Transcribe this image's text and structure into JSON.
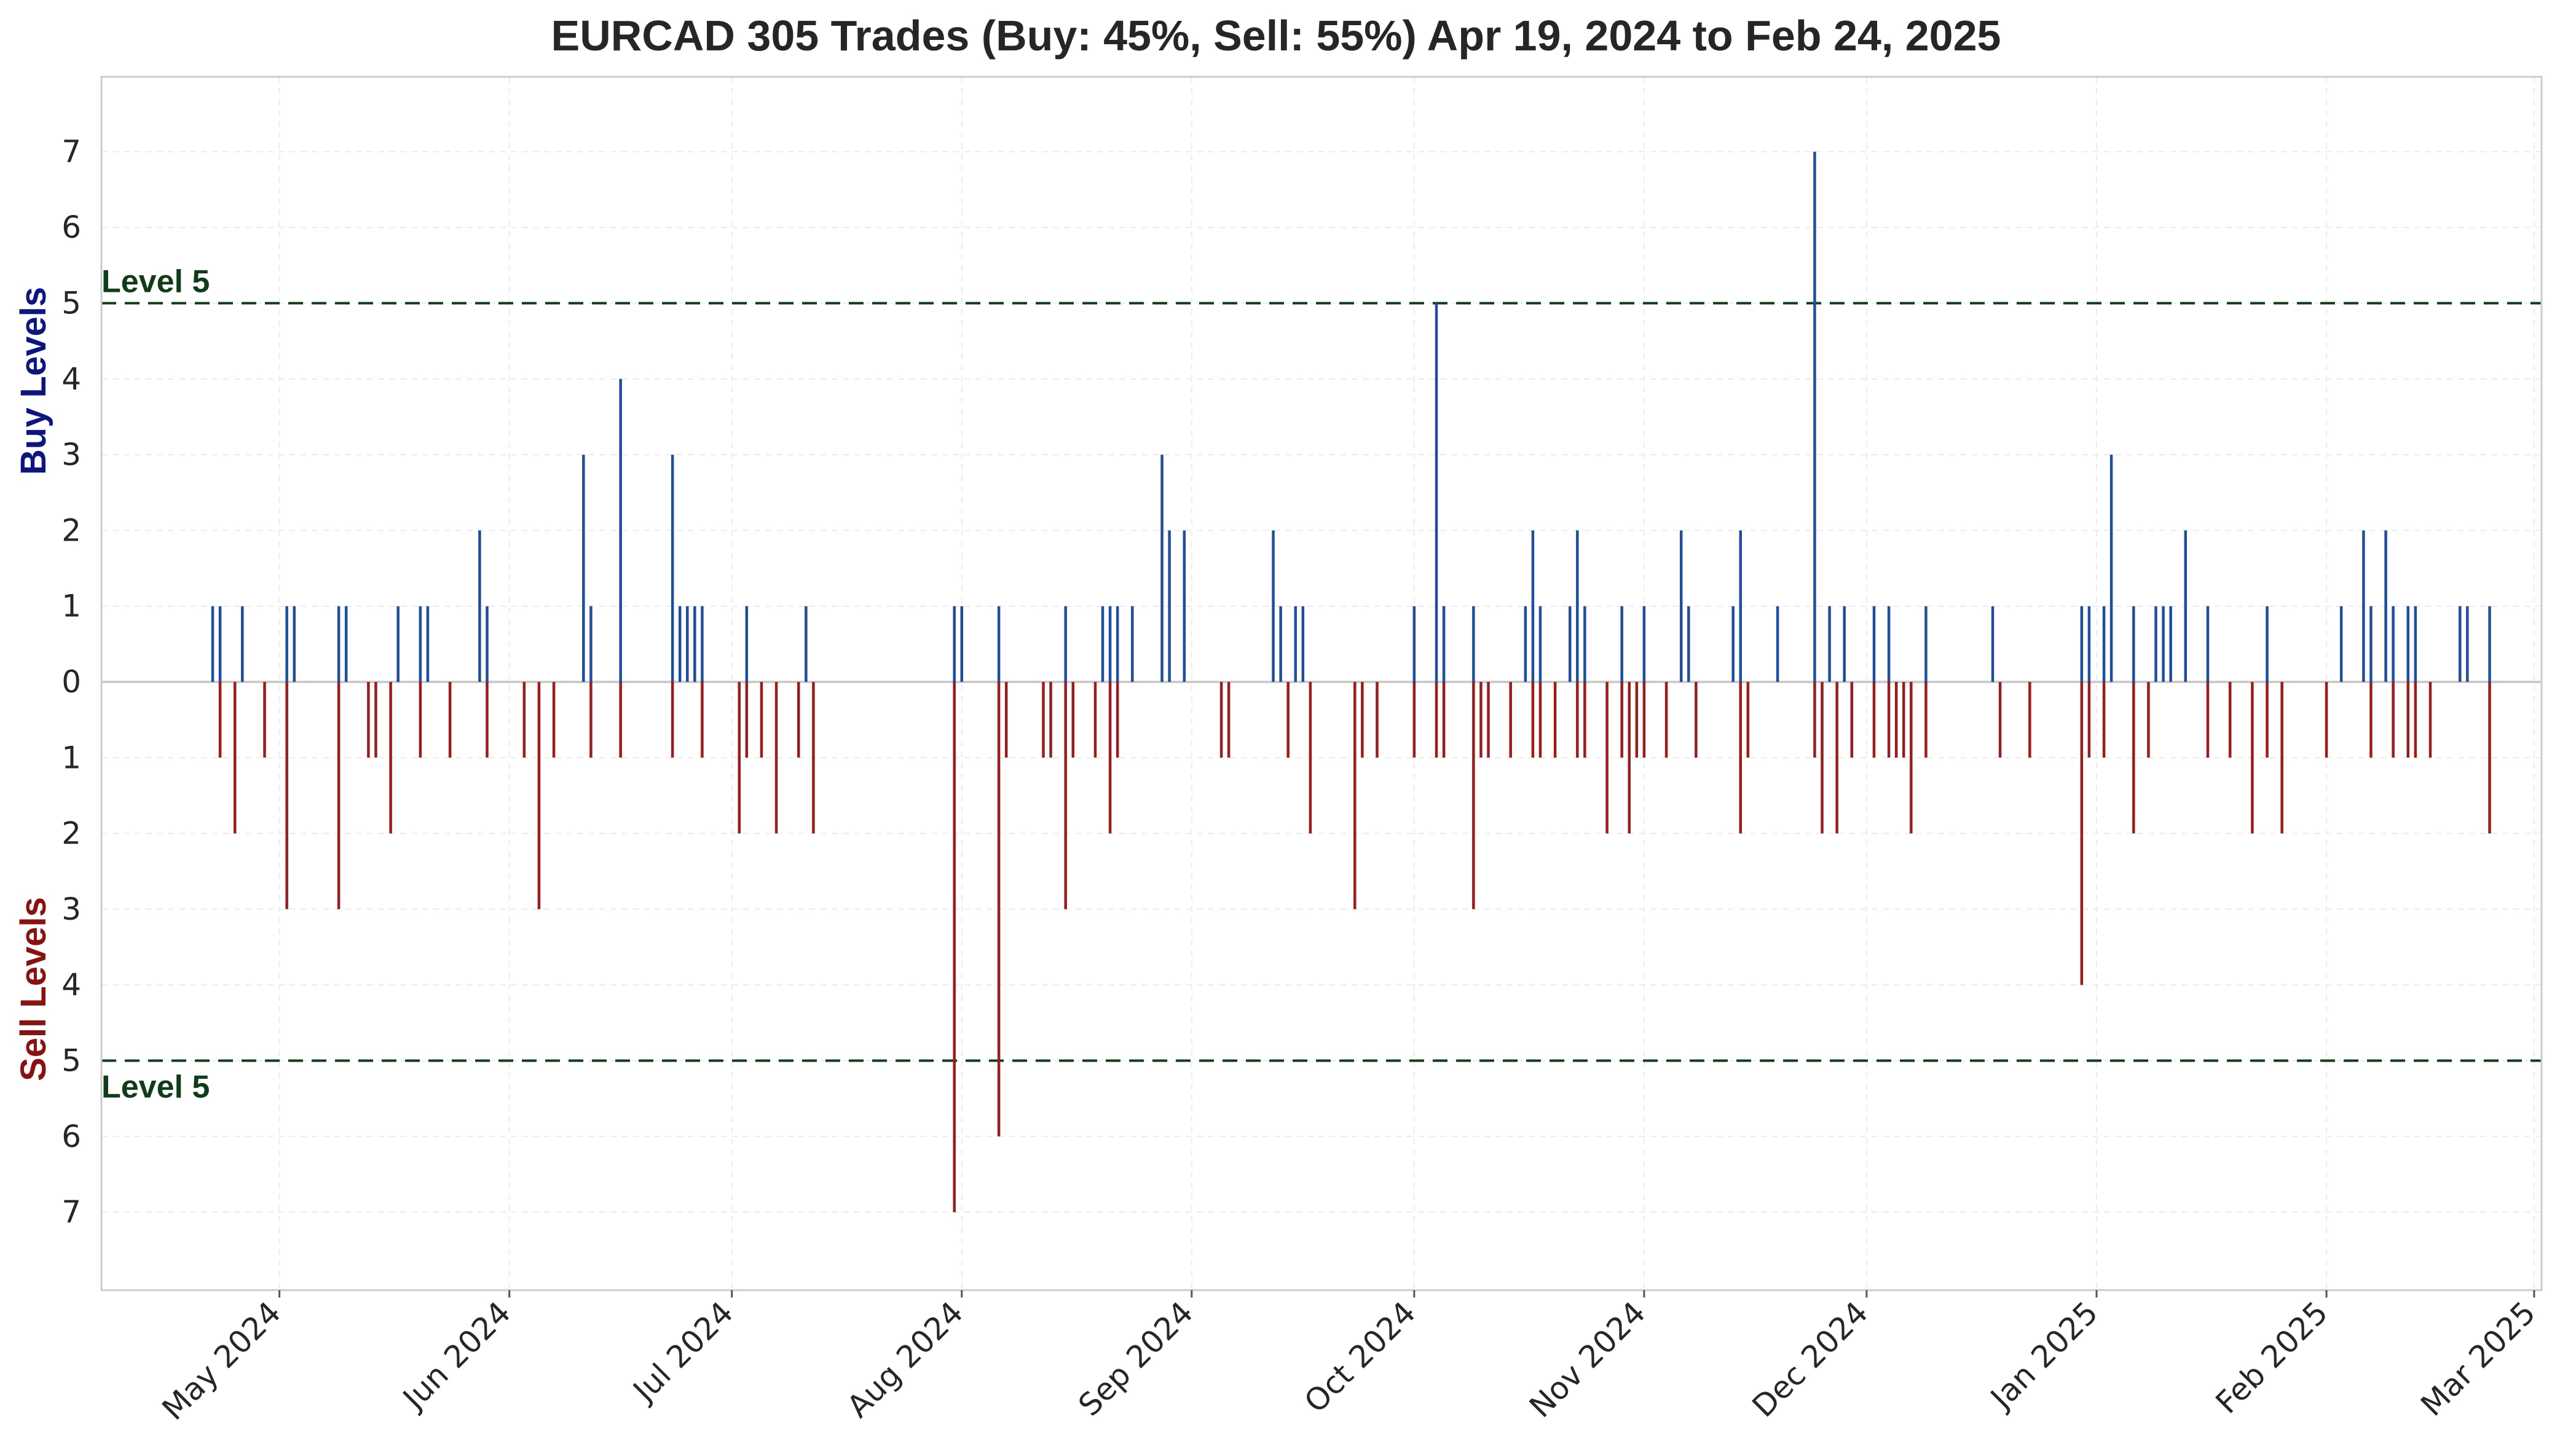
{
  "chart_data": {
    "type": "bar",
    "title": "EURCAD 305 Trades (Buy: 45%, Sell: 55%) Apr 19, 2024 to Feb 24, 2025",
    "buy_axis_label": "Buy Levels",
    "sell_axis_label": "Sell Levels",
    "y_tick_labels": [
      "7",
      "6",
      "5",
      "4",
      "3",
      "2",
      "1",
      "0",
      "1",
      "2",
      "3",
      "4",
      "5",
      "6",
      "7"
    ],
    "ylim": [
      -8,
      8
    ],
    "xlim": [
      "2024-04-07",
      "2025-03-02"
    ],
    "x_tick_labels": [
      {
        "date": "2024-05-01",
        "label": "May 2024"
      },
      {
        "date": "2024-06-01",
        "label": "Jun 2024"
      },
      {
        "date": "2024-07-01",
        "label": "Jul 2024"
      },
      {
        "date": "2024-08-01",
        "label": "Aug 2024"
      },
      {
        "date": "2024-09-01",
        "label": "Sep 2024"
      },
      {
        "date": "2024-10-01",
        "label": "Oct 2024"
      },
      {
        "date": "2024-11-01",
        "label": "Nov 2024"
      },
      {
        "date": "2024-12-01",
        "label": "Dec 2024"
      },
      {
        "date": "2025-01-01",
        "label": "Jan 2025"
      },
      {
        "date": "2025-02-01",
        "label": "Feb 2025"
      },
      {
        "date": "2025-03-01",
        "label": "Mar 2025"
      }
    ],
    "reference_lines": [
      {
        "value": 5,
        "label": "Level 5"
      },
      {
        "value": -5,
        "label": "Level 5"
      }
    ],
    "grid": true,
    "colors": {
      "buy": "#1f4e9e",
      "sell": "#9b1c1c",
      "level_line": "#0f3d1a",
      "level_text": "#0f3d1a",
      "buy_label": "#0d1680",
      "sell_label": "#8b1010"
    },
    "series": [
      {
        "name": "Buy",
        "points": [
          {
            "date": "2024-04-22",
            "value": 1
          },
          {
            "date": "2024-04-23",
            "value": 1
          },
          {
            "date": "2024-04-26",
            "value": 1
          },
          {
            "date": "2024-05-02",
            "value": 1
          },
          {
            "date": "2024-05-03",
            "value": 1
          },
          {
            "date": "2024-05-09",
            "value": 1
          },
          {
            "date": "2024-05-10",
            "value": 1
          },
          {
            "date": "2024-05-17",
            "value": 1
          },
          {
            "date": "2024-05-20",
            "value": 1
          },
          {
            "date": "2024-05-21",
            "value": 1
          },
          {
            "date": "2024-05-28",
            "value": 2
          },
          {
            "date": "2024-05-29",
            "value": 1
          },
          {
            "date": "2024-06-11",
            "value": 3
          },
          {
            "date": "2024-06-12",
            "value": 1
          },
          {
            "date": "2024-06-16",
            "value": 4
          },
          {
            "date": "2024-06-23",
            "value": 3
          },
          {
            "date": "2024-06-24",
            "value": 1
          },
          {
            "date": "2024-06-25",
            "value": 1
          },
          {
            "date": "2024-06-26",
            "value": 1
          },
          {
            "date": "2024-06-27",
            "value": 1
          },
          {
            "date": "2024-07-03",
            "value": 1
          },
          {
            "date": "2024-07-11",
            "value": 1
          },
          {
            "date": "2024-07-31",
            "value": 1
          },
          {
            "date": "2024-08-01",
            "value": 1
          },
          {
            "date": "2024-08-06",
            "value": 1
          },
          {
            "date": "2024-08-15",
            "value": 1
          },
          {
            "date": "2024-08-20",
            "value": 1
          },
          {
            "date": "2024-08-21",
            "value": 1
          },
          {
            "date": "2024-08-22",
            "value": 1
          },
          {
            "date": "2024-08-24",
            "value": 1
          },
          {
            "date": "2024-08-28",
            "value": 3
          },
          {
            "date": "2024-08-29",
            "value": 2
          },
          {
            "date": "2024-08-31",
            "value": 2
          },
          {
            "date": "2024-09-12",
            "value": 2
          },
          {
            "date": "2024-09-13",
            "value": 1
          },
          {
            "date": "2024-09-15",
            "value": 1
          },
          {
            "date": "2024-09-16",
            "value": 1
          },
          {
            "date": "2024-10-01",
            "value": 1
          },
          {
            "date": "2024-10-04",
            "value": 5
          },
          {
            "date": "2024-10-05",
            "value": 1
          },
          {
            "date": "2024-10-09",
            "value": 1
          },
          {
            "date": "2024-10-16",
            "value": 1
          },
          {
            "date": "2024-10-17",
            "value": 2
          },
          {
            "date": "2024-10-18",
            "value": 1
          },
          {
            "date": "2024-10-22",
            "value": 1
          },
          {
            "date": "2024-10-23",
            "value": 2
          },
          {
            "date": "2024-10-24",
            "value": 1
          },
          {
            "date": "2024-10-29",
            "value": 1
          },
          {
            "date": "2024-11-01",
            "value": 1
          },
          {
            "date": "2024-11-06",
            "value": 2
          },
          {
            "date": "2024-11-07",
            "value": 1
          },
          {
            "date": "2024-11-13",
            "value": 1
          },
          {
            "date": "2024-11-14",
            "value": 2
          },
          {
            "date": "2024-11-19",
            "value": 1
          },
          {
            "date": "2024-11-24",
            "value": 7
          },
          {
            "date": "2024-11-26",
            "value": 1
          },
          {
            "date": "2024-11-28",
            "value": 1
          },
          {
            "date": "2024-12-02",
            "value": 1
          },
          {
            "date": "2024-12-04",
            "value": 1
          },
          {
            "date": "2024-12-09",
            "value": 1
          },
          {
            "date": "2024-12-18",
            "value": 1
          },
          {
            "date": "2024-12-30",
            "value": 1
          },
          {
            "date": "2024-12-31",
            "value": 1
          },
          {
            "date": "2025-01-02",
            "value": 1
          },
          {
            "date": "2025-01-03",
            "value": 3
          },
          {
            "date": "2025-01-06",
            "value": 1
          },
          {
            "date": "2025-01-09",
            "value": 1
          },
          {
            "date": "2025-01-10",
            "value": 1
          },
          {
            "date": "2025-01-11",
            "value": 1
          },
          {
            "date": "2025-01-13",
            "value": 2
          },
          {
            "date": "2025-01-16",
            "value": 1
          },
          {
            "date": "2025-01-24",
            "value": 1
          },
          {
            "date": "2025-02-03",
            "value": 1
          },
          {
            "date": "2025-02-06",
            "value": 2
          },
          {
            "date": "2025-02-07",
            "value": 1
          },
          {
            "date": "2025-02-09",
            "value": 2
          },
          {
            "date": "2025-02-10",
            "value": 1
          },
          {
            "date": "2025-02-12",
            "value": 1
          },
          {
            "date": "2025-02-13",
            "value": 1
          },
          {
            "date": "2025-02-19",
            "value": 1
          },
          {
            "date": "2025-02-20",
            "value": 1
          },
          {
            "date": "2025-02-23",
            "value": 1
          }
        ]
      },
      {
        "name": "Sell",
        "points": [
          {
            "date": "2024-04-23",
            "value": -1
          },
          {
            "date": "2024-04-25",
            "value": -2
          },
          {
            "date": "2024-04-29",
            "value": -1
          },
          {
            "date": "2024-05-02",
            "value": -3
          },
          {
            "date": "2024-05-09",
            "value": -3
          },
          {
            "date": "2024-05-13",
            "value": -1
          },
          {
            "date": "2024-05-14",
            "value": -1
          },
          {
            "date": "2024-05-16",
            "value": -2
          },
          {
            "date": "2024-05-20",
            "value": -1
          },
          {
            "date": "2024-05-24",
            "value": -1
          },
          {
            "date": "2024-05-29",
            "value": -1
          },
          {
            "date": "2024-06-03",
            "value": -1
          },
          {
            "date": "2024-06-05",
            "value": -3
          },
          {
            "date": "2024-06-07",
            "value": -1
          },
          {
            "date": "2024-06-12",
            "value": -1
          },
          {
            "date": "2024-06-16",
            "value": -1
          },
          {
            "date": "2024-06-23",
            "value": -1
          },
          {
            "date": "2024-06-27",
            "value": -1
          },
          {
            "date": "2024-07-02",
            "value": -2
          },
          {
            "date": "2024-07-03",
            "value": -1
          },
          {
            "date": "2024-07-05",
            "value": -1
          },
          {
            "date": "2024-07-07",
            "value": -2
          },
          {
            "date": "2024-07-10",
            "value": -1
          },
          {
            "date": "2024-07-12",
            "value": -2
          },
          {
            "date": "2024-07-31",
            "value": -7
          },
          {
            "date": "2024-08-06",
            "value": -6
          },
          {
            "date": "2024-08-07",
            "value": -1
          },
          {
            "date": "2024-08-12",
            "value": -1
          },
          {
            "date": "2024-08-13",
            "value": -1
          },
          {
            "date": "2024-08-15",
            "value": -3
          },
          {
            "date": "2024-08-16",
            "value": -1
          },
          {
            "date": "2024-08-19",
            "value": -1
          },
          {
            "date": "2024-08-21",
            "value": -2
          },
          {
            "date": "2024-08-22",
            "value": -1
          },
          {
            "date": "2024-09-05",
            "value": -1
          },
          {
            "date": "2024-09-06",
            "value": -1
          },
          {
            "date": "2024-09-14",
            "value": -1
          },
          {
            "date": "2024-09-17",
            "value": -2
          },
          {
            "date": "2024-09-23",
            "value": -3
          },
          {
            "date": "2024-09-24",
            "value": -1
          },
          {
            "date": "2024-09-26",
            "value": -1
          },
          {
            "date": "2024-10-01",
            "value": -1
          },
          {
            "date": "2024-10-04",
            "value": -1
          },
          {
            "date": "2024-10-05",
            "value": -1
          },
          {
            "date": "2024-10-09",
            "value": -3
          },
          {
            "date": "2024-10-10",
            "value": -1
          },
          {
            "date": "2024-10-11",
            "value": -1
          },
          {
            "date": "2024-10-14",
            "value": -1
          },
          {
            "date": "2024-10-17",
            "value": -1
          },
          {
            "date": "2024-10-18",
            "value": -1
          },
          {
            "date": "2024-10-20",
            "value": -1
          },
          {
            "date": "2024-10-23",
            "value": -1
          },
          {
            "date": "2024-10-24",
            "value": -1
          },
          {
            "date": "2024-10-27",
            "value": -2
          },
          {
            "date": "2024-10-29",
            "value": -1
          },
          {
            "date": "2024-10-30",
            "value": -2
          },
          {
            "date": "2024-10-31",
            "value": -1
          },
          {
            "date": "2024-11-01",
            "value": -1
          },
          {
            "date": "2024-11-04",
            "value": -1
          },
          {
            "date": "2024-11-08",
            "value": -1
          },
          {
            "date": "2024-11-14",
            "value": -2
          },
          {
            "date": "2024-11-15",
            "value": -1
          },
          {
            "date": "2024-11-24",
            "value": -1
          },
          {
            "date": "2024-11-25",
            "value": -2
          },
          {
            "date": "2024-11-27",
            "value": -2
          },
          {
            "date": "2024-11-29",
            "value": -1
          },
          {
            "date": "2024-12-02",
            "value": -1
          },
          {
            "date": "2024-12-04",
            "value": -1
          },
          {
            "date": "2024-12-05",
            "value": -1
          },
          {
            "date": "2024-12-06",
            "value": -1
          },
          {
            "date": "2024-12-07",
            "value": -2
          },
          {
            "date": "2024-12-09",
            "value": -1
          },
          {
            "date": "2024-12-19",
            "value": -1
          },
          {
            "date": "2024-12-23",
            "value": -1
          },
          {
            "date": "2024-12-30",
            "value": -4
          },
          {
            "date": "2024-12-31",
            "value": -1
          },
          {
            "date": "2025-01-02",
            "value": -1
          },
          {
            "date": "2025-01-06",
            "value": -2
          },
          {
            "date": "2025-01-08",
            "value": -1
          },
          {
            "date": "2025-01-16",
            "value": -1
          },
          {
            "date": "2025-01-19",
            "value": -1
          },
          {
            "date": "2025-01-22",
            "value": -2
          },
          {
            "date": "2025-01-24",
            "value": -1
          },
          {
            "date": "2025-01-26",
            "value": -2
          },
          {
            "date": "2025-02-01",
            "value": -1
          },
          {
            "date": "2025-02-07",
            "value": -1
          },
          {
            "date": "2025-02-10",
            "value": -1
          },
          {
            "date": "2025-02-12",
            "value": -1
          },
          {
            "date": "2025-02-13",
            "value": -1
          },
          {
            "date": "2025-02-15",
            "value": -1
          },
          {
            "date": "2025-02-23",
            "value": -2
          }
        ]
      }
    ]
  }
}
